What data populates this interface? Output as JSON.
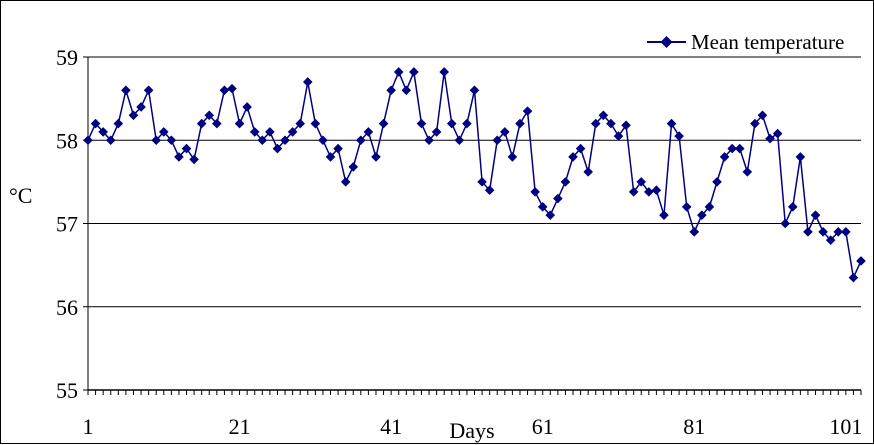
{
  "chart_data": {
    "type": "line",
    "title": "",
    "xlabel": "Days",
    "ylabel": "°C",
    "xlim": [
      1,
      103
    ],
    "ylim": [
      55,
      59
    ],
    "x_ticks": [
      1,
      21,
      41,
      61,
      81,
      101
    ],
    "y_ticks": [
      55,
      56,
      57,
      58,
      59
    ],
    "grid": "horizontal",
    "legend_position": "top-right",
    "series": [
      {
        "name": "Mean temperature",
        "color": "#000080",
        "marker": "diamond",
        "x": [
          1,
          2,
          3,
          4,
          5,
          6,
          7,
          8,
          9,
          10,
          11,
          12,
          13,
          14,
          15,
          16,
          17,
          18,
          19,
          20,
          21,
          22,
          23,
          24,
          25,
          26,
          27,
          28,
          29,
          30,
          31,
          32,
          33,
          34,
          35,
          36,
          37,
          38,
          39,
          40,
          41,
          42,
          43,
          44,
          45,
          46,
          47,
          48,
          49,
          50,
          51,
          52,
          53,
          54,
          55,
          56,
          57,
          58,
          59,
          60,
          61,
          62,
          63,
          64,
          65,
          66,
          67,
          68,
          69,
          70,
          71,
          72,
          73,
          74,
          75,
          76,
          77,
          78,
          79,
          80,
          81,
          82,
          83,
          84,
          85,
          86,
          87,
          88,
          89,
          90,
          91,
          92,
          93,
          94,
          95,
          96,
          97,
          98,
          99,
          100,
          101,
          102,
          103
        ],
        "values": [
          58.0,
          58.2,
          58.1,
          58.0,
          58.2,
          58.6,
          58.3,
          58.4,
          58.6,
          58.0,
          58.1,
          58.0,
          57.8,
          57.9,
          57.77,
          58.2,
          58.3,
          58.2,
          58.6,
          58.62,
          58.2,
          58.4,
          58.1,
          58.0,
          58.1,
          57.9,
          58.0,
          58.1,
          58.2,
          58.7,
          58.2,
          58.0,
          57.8,
          57.9,
          57.5,
          57.68,
          58.0,
          58.1,
          57.8,
          58.2,
          58.6,
          58.82,
          58.6,
          58.82,
          58.2,
          58.0,
          58.1,
          58.82,
          58.2,
          58.0,
          58.2,
          58.6,
          57.5,
          57.4,
          58.0,
          58.1,
          57.8,
          58.2,
          58.35,
          57.38,
          57.2,
          57.1,
          57.3,
          57.5,
          57.8,
          57.9,
          57.62,
          58.2,
          58.3,
          58.2,
          58.05,
          58.18,
          57.38,
          57.5,
          57.38,
          57.4,
          57.1,
          58.2,
          58.05,
          57.2,
          56.9,
          57.1,
          57.2,
          57.5,
          57.8,
          57.9,
          57.9,
          57.62,
          58.2,
          58.3,
          58.02,
          58.08,
          57.0,
          57.2,
          57.8,
          56.9,
          57.1,
          56.9,
          56.8,
          56.9,
          56.9,
          56.35,
          56.55
        ]
      }
    ]
  }
}
